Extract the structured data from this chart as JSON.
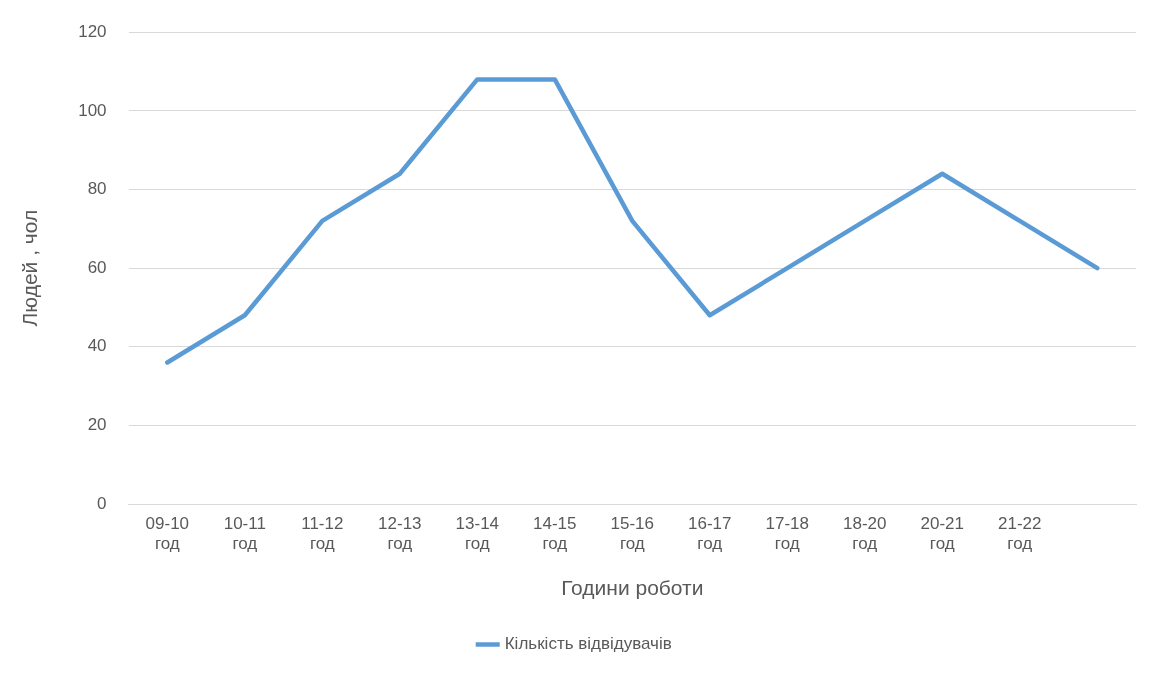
{
  "chart_data": {
    "type": "line",
    "xlabel": "Години роботи",
    "ylabel": "Людей , чол",
    "categories": [
      "09-10 год",
      "10-11 год",
      "11-12 год",
      "12-13 год",
      "13-14 год",
      "14-15 год",
      "15-16 год",
      "16-17 год",
      "17-18 год",
      "18-20 год",
      "20-21 год",
      "21-22 год",
      null
    ],
    "series": [
      {
        "name": "Кількість відвідувачів",
        "color": "#5b9bd5",
        "values": [
          36,
          48,
          72,
          84,
          108,
          108,
          72,
          48,
          60,
          72,
          84,
          72,
          60
        ]
      }
    ],
    "ylim": [
      0,
      120
    ],
    "yticks": [
      0,
      20,
      40,
      60,
      80,
      100,
      120
    ],
    "grid": "y",
    "legend": "bottom",
    "marker": "none",
    "line_style": "solid"
  }
}
